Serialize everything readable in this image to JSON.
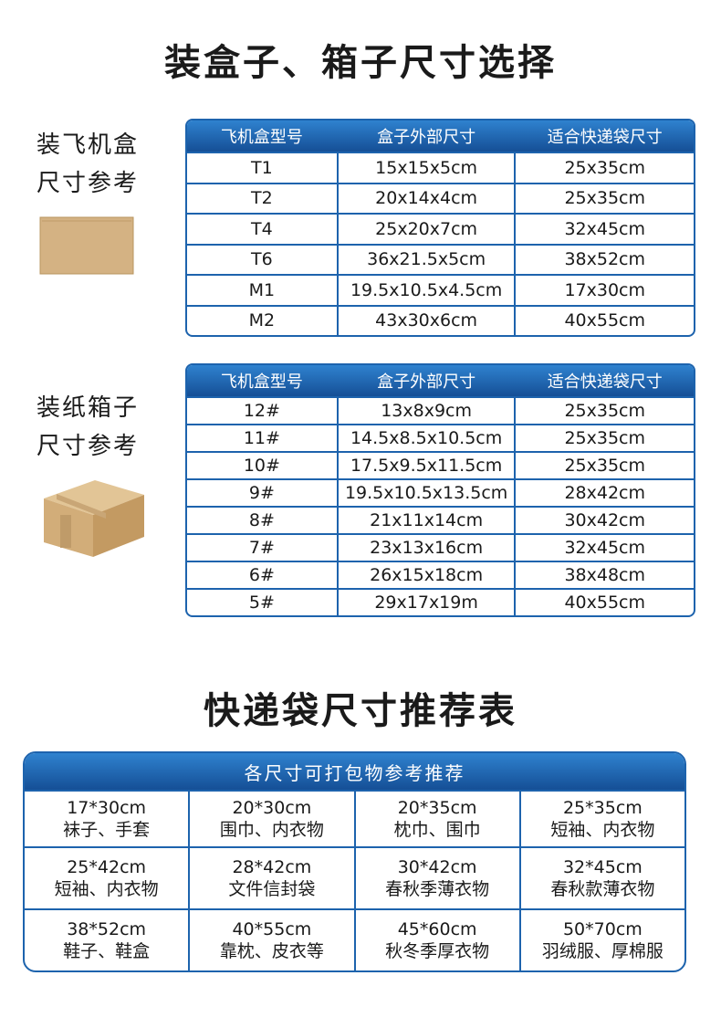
{
  "title": "装盒子、箱子尺寸选择",
  "sections": [
    {
      "label": [
        "装飞机盒",
        "尺寸参考"
      ],
      "table": {
        "headers": [
          "飞机盒型号",
          "盒子外部尺寸",
          "适合快递袋尺寸"
        ],
        "rows": [
          [
            "T1",
            "15x15x5cm",
            "25x35cm"
          ],
          [
            "T2",
            "20x14x4cm",
            "25x35cm"
          ],
          [
            "T4",
            "25x20x7cm",
            "32x45cm"
          ],
          [
            "T6",
            "36x21.5x5cm",
            "38x52cm"
          ],
          [
            "M1",
            "19.5x10.5x4.5cm",
            "17x30cm"
          ],
          [
            "M2",
            "43x30x6cm",
            "40x55cm"
          ]
        ]
      }
    },
    {
      "label": [
        "装纸箱子",
        "尺寸参考"
      ],
      "table": {
        "headers": [
          "飞机盒型号",
          "盒子外部尺寸",
          "适合快递袋尺寸"
        ],
        "rows": [
          [
            "12#",
            "13x8x9cm",
            "25x35cm"
          ],
          [
            "11#",
            "14.5x8.5x10.5cm",
            "25x35cm"
          ],
          [
            "10#",
            "17.5x9.5x11.5cm",
            "25x35cm"
          ],
          [
            "9#",
            "19.5x10.5x13.5cm",
            "28x42cm"
          ],
          [
            "8#",
            "21x11x14cm",
            "30x42cm"
          ],
          [
            "7#",
            "23x13x16cm",
            "32x45cm"
          ],
          [
            "6#",
            "26x15x18cm",
            "38x48cm"
          ],
          [
            "5#",
            "29x17x19m",
            "40x55cm"
          ]
        ]
      }
    }
  ],
  "recommend": {
    "title": "快递袋尺寸推荐表",
    "header": "各尺寸可打包物参考推荐",
    "rows": [
      [
        {
          "size": "17*30cm",
          "items": "袜子、手套"
        },
        {
          "size": "20*30cm",
          "items": "围巾、内衣物"
        },
        {
          "size": "20*35cm",
          "items": "枕巾、围巾"
        },
        {
          "size": "25*35cm",
          "items": "短袖、内衣物"
        }
      ],
      [
        {
          "size": "25*42cm",
          "items": "短袖、内衣物"
        },
        {
          "size": "28*42cm",
          "items": "文件信封袋"
        },
        {
          "size": "30*42cm",
          "items": "春秋季薄衣物"
        },
        {
          "size": "32*45cm",
          "items": "春秋款薄衣物"
        }
      ],
      [
        {
          "size": "38*52cm",
          "items": "鞋子、鞋盒"
        },
        {
          "size": "40*55cm",
          "items": "靠枕、皮衣等"
        },
        {
          "size": "45*60cm",
          "items": "秋冬季厚衣物"
        },
        {
          "size": "50*70cm",
          "items": "羽绒服、厚棉服"
        }
      ]
    ]
  }
}
